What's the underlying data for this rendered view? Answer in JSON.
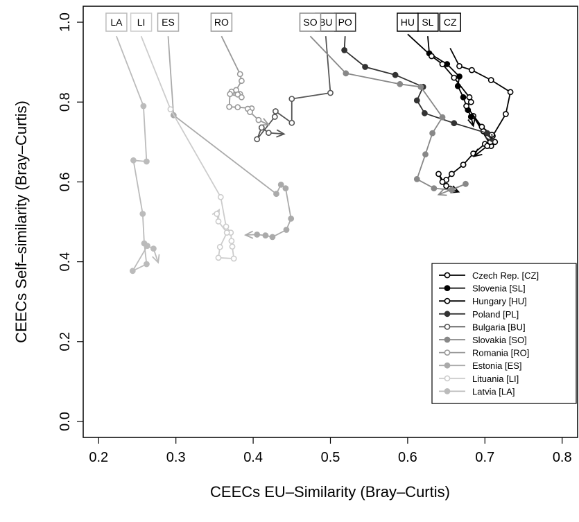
{
  "chart_data": {
    "type": "line",
    "xlabel": "CEECs EU–Similarity (Bray–Curtis)",
    "ylabel": "CEECs Self–similarity (Bray–Curtis)",
    "xlim": [
      0.18,
      0.82
    ],
    "ylim": [
      -0.04,
      1.04
    ],
    "xticks": [
      0.2,
      0.3,
      0.4,
      0.5,
      0.6,
      0.7,
      0.8
    ],
    "yticks": [
      0.0,
      0.2,
      0.4,
      0.6,
      0.8,
      1.0
    ],
    "xtick_labels": [
      "0.2",
      "0.3",
      "0.4",
      "0.5",
      "0.6",
      "0.7",
      "0.8"
    ],
    "ytick_labels": [
      "0.0",
      "0.2",
      "0.4",
      "0.6",
      "0.8",
      "1.0"
    ],
    "grid": false,
    "legend_position": "bottom-right",
    "series": [
      {
        "name": "Czech Rep. [CZ]",
        "tag": "CZ",
        "tag_x": 0.655,
        "color": "#000000",
        "filled": false,
        "x": [
          0.655,
          0.667,
          0.683,
          0.708,
          0.733,
          0.727,
          0.71,
          0.708,
          0.685,
          0.698,
          0.713,
          0.7,
          0.685,
          0.672,
          0.657,
          0.65,
          0.645,
          0.64,
          0.65,
          0.655,
          0.666
        ],
        "y": [
          0.935,
          0.89,
          0.88,
          0.855,
          0.825,
          0.77,
          0.715,
          0.69,
          0.765,
          0.727,
          0.7,
          0.695,
          0.671,
          0.643,
          0.62,
          0.605,
          0.6,
          0.62,
          0.59,
          0.583,
          0.575
        ]
      },
      {
        "name": "Slovenia [SL]",
        "tag": "SL",
        "tag_x": 0.626,
        "color": "#000000",
        "filled": true,
        "x": [
          0.626,
          0.628,
          0.651,
          0.667,
          0.665,
          0.672,
          0.678,
          0.682,
          0.685
        ],
        "y": [
          0.965,
          0.922,
          0.895,
          0.864,
          0.84,
          0.812,
          0.78,
          0.763,
          0.74
        ]
      },
      {
        "name": "Hungary [HU]",
        "tag": "HU",
        "tag_x": 0.6,
        "color": "#000000",
        "filled": false,
        "x": [
          0.6,
          0.631,
          0.645,
          0.66,
          0.68,
          0.682,
          0.676,
          0.696,
          0.709,
          0.707,
          0.703,
          0.686
        ],
        "y": [
          0.97,
          0.915,
          0.895,
          0.861,
          0.812,
          0.8,
          0.79,
          0.738,
          0.718,
          0.7,
          0.69,
          0.664
        ]
      },
      {
        "name": "Poland [PL]",
        "tag": "PO",
        "tag_x": 0.519,
        "color": "#333333",
        "filled": true,
        "x": [
          0.519,
          0.518,
          0.545,
          0.584,
          0.62,
          0.612,
          0.622,
          0.66,
          0.703,
          0.71
        ],
        "y": [
          0.965,
          0.93,
          0.888,
          0.868,
          0.838,
          0.804,
          0.772,
          0.747,
          0.722,
          0.7
        ]
      },
      {
        "name": "Bulgaria [BU]",
        "tag": "BU",
        "tag_x": 0.494,
        "color": "#555555",
        "filled": false,
        "x": [
          0.494,
          0.5,
          0.45,
          0.45,
          0.429,
          0.428,
          0.405,
          0.411,
          0.42,
          0.44
        ],
        "y": [
          0.965,
          0.823,
          0.808,
          0.748,
          0.777,
          0.763,
          0.707,
          0.736,
          0.723,
          0.72
        ]
      },
      {
        "name": "Slovakia [SO]",
        "tag": "SO",
        "tag_x": 0.474,
        "color": "#888888",
        "filled": true,
        "x": [
          0.474,
          0.52,
          0.59,
          0.617,
          0.645,
          0.632,
          0.623,
          0.612,
          0.634,
          0.657,
          0.675,
          0.64
        ],
        "y": [
          0.965,
          0.872,
          0.845,
          0.838,
          0.762,
          0.722,
          0.669,
          0.607,
          0.584,
          0.58,
          0.595,
          0.568
        ]
      },
      {
        "name": "Romania [RO]",
        "tag": "RO",
        "tag_x": 0.359,
        "color": "#999999",
        "filled": false,
        "x": [
          0.359,
          0.383,
          0.385,
          0.378,
          0.383,
          0.372,
          0.38,
          0.385,
          0.37,
          0.369,
          0.38,
          0.398,
          0.393,
          0.396,
          0.407,
          0.42
        ],
        "y": [
          0.965,
          0.87,
          0.853,
          0.83,
          0.82,
          0.826,
          0.819,
          0.812,
          0.82,
          0.788,
          0.787,
          0.784,
          0.783,
          0.775,
          0.755,
          0.743
        ]
      },
      {
        "name": "Estonia [ES]",
        "tag": "ES",
        "tag_x": 0.29,
        "color": "#aaaaaa",
        "filled": true,
        "x": [
          0.29,
          0.297,
          0.43,
          0.436,
          0.442,
          0.449,
          0.443,
          0.425,
          0.416,
          0.405,
          0.39
        ],
        "y": [
          0.965,
          0.767,
          0.57,
          0.593,
          0.584,
          0.508,
          0.48,
          0.462,
          0.466,
          0.468,
          0.467
        ]
      },
      {
        "name": "Lituania [LI]",
        "tag": "LI",
        "tag_x": 0.255,
        "color": "#cccccc",
        "filled": false,
        "x": [
          0.255,
          0.293,
          0.358,
          0.365,
          0.371,
          0.372,
          0.373,
          0.375,
          0.355,
          0.357,
          0.366,
          0.355,
          0.353,
          0.356
        ],
        "y": [
          0.965,
          0.782,
          0.562,
          0.488,
          0.473,
          0.452,
          0.438,
          0.408,
          0.41,
          0.437,
          0.473,
          0.501,
          0.52,
          0.53
        ]
      },
      {
        "name": "Latvia [LA]",
        "tag": "LA",
        "tag_x": 0.223,
        "color": "#bbbbbb",
        "filled": true,
        "x": [
          0.223,
          0.258,
          0.262,
          0.245,
          0.257,
          0.259,
          0.262,
          0.244,
          0.263,
          0.271,
          0.277
        ],
        "y": [
          0.965,
          0.79,
          0.651,
          0.654,
          0.52,
          0.446,
          0.394,
          0.377,
          0.44,
          0.433,
          0.398
        ]
      }
    ]
  }
}
